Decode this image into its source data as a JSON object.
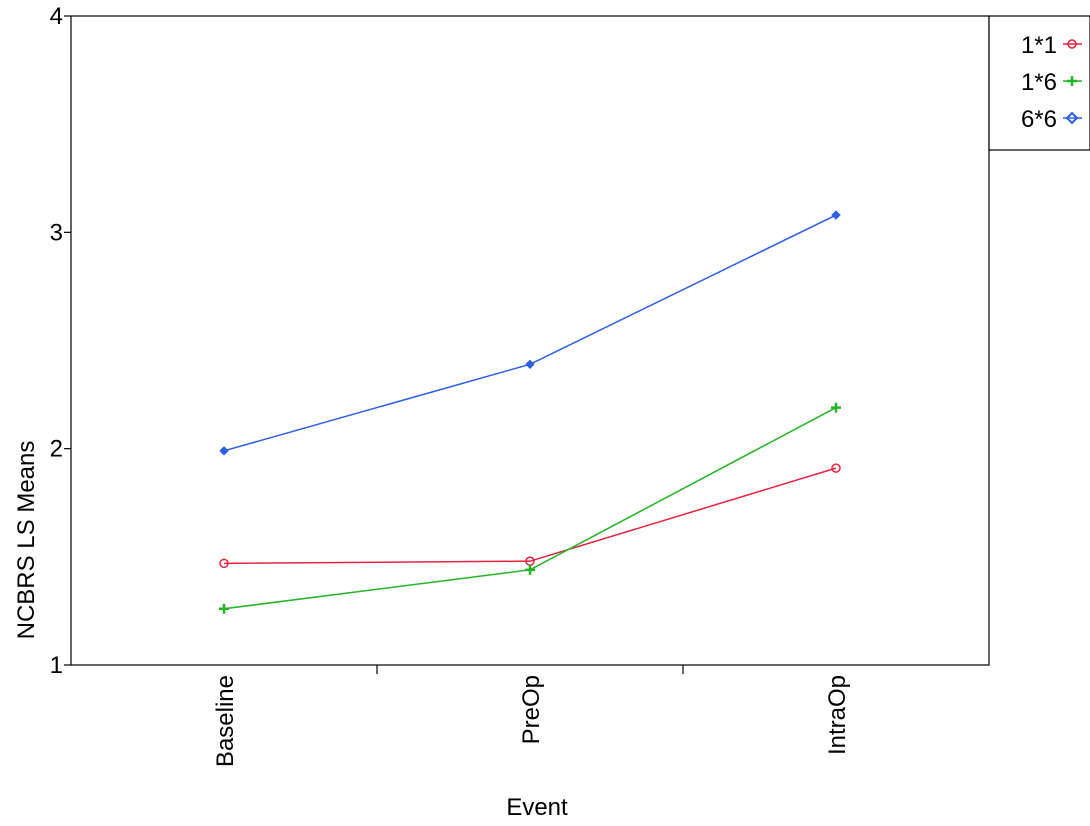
{
  "chart_data": {
    "type": "line",
    "categories": [
      "Baseline",
      "PreOp",
      "IntraOp"
    ],
    "series": [
      {
        "name": "1*1",
        "values": [
          1.47,
          1.48,
          1.91
        ],
        "color": "#e8223c",
        "marker": "circle"
      },
      {
        "name": "1*6",
        "values": [
          1.26,
          1.44,
          2.19
        ],
        "color": "#22b422",
        "marker": "plus"
      },
      {
        "name": "6*6",
        "values": [
          1.99,
          2.39,
          3.08
        ],
        "color": "#2a5fe6",
        "marker": "diamond"
      }
    ],
    "xlabel": "Event",
    "ylabel": "NCBRS LS Means",
    "ylim": [
      1,
      4
    ],
    "yticks": [
      "1",
      "2",
      "3",
      "4"
    ],
    "grid": false,
    "legend": "right"
  }
}
